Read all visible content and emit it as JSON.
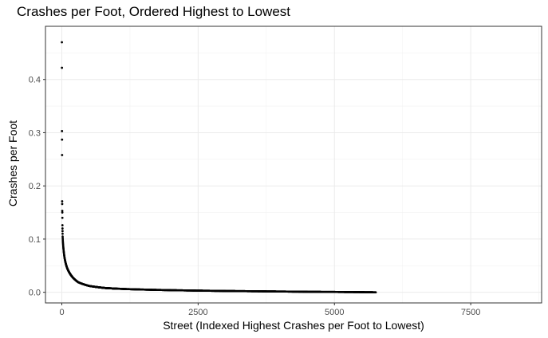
{
  "chart_data": {
    "type": "scatter",
    "title": "Crashes per Foot, Ordered Highest to Lowest",
    "xlabel": "Street (Indexed Highest Crashes per Foot to Lowest)",
    "ylabel": "Crashes per Foot",
    "xlim": [
      -300,
      8800
    ],
    "ylim": [
      -0.02,
      0.5
    ],
    "x_ticks": [
      0,
      2500,
      5000,
      7500
    ],
    "y_ticks": [
      0.0,
      0.1,
      0.2,
      0.3,
      0.4
    ],
    "grid": true,
    "n_points": 5760,
    "leading_points": [
      {
        "x": 1,
        "y": 0.47
      },
      {
        "x": 2,
        "y": 0.422
      },
      {
        "x": 3,
        "y": 0.303
      },
      {
        "x": 4,
        "y": 0.287
      },
      {
        "x": 5,
        "y": 0.258
      },
      {
        "x": 6,
        "y": 0.171
      },
      {
        "x": 7,
        "y": 0.166
      },
      {
        "x": 8,
        "y": 0.153
      },
      {
        "x": 9,
        "y": 0.15
      },
      {
        "x": 10,
        "y": 0.14
      },
      {
        "x": 11,
        "y": 0.126
      },
      {
        "x": 12,
        "y": 0.12
      },
      {
        "x": 13,
        "y": 0.115
      },
      {
        "x": 14,
        "y": 0.11
      }
    ],
    "tail_points": [
      {
        "x": 15,
        "y": 0.105
      },
      {
        "x": 20,
        "y": 0.095
      },
      {
        "x": 30,
        "y": 0.082
      },
      {
        "x": 50,
        "y": 0.065
      },
      {
        "x": 75,
        "y": 0.053
      },
      {
        "x": 100,
        "y": 0.045
      },
      {
        "x": 150,
        "y": 0.035
      },
      {
        "x": 200,
        "y": 0.028
      },
      {
        "x": 300,
        "y": 0.019
      },
      {
        "x": 500,
        "y": 0.012
      },
      {
        "x": 800,
        "y": 0.008
      },
      {
        "x": 1200,
        "y": 0.006
      },
      {
        "x": 2000,
        "y": 0.004
      },
      {
        "x": 3000,
        "y": 0.0025
      },
      {
        "x": 3700,
        "y": 0.0018
      },
      {
        "x": 4500,
        "y": 0.001
      },
      {
        "x": 5500,
        "y": 0.0003
      },
      {
        "x": 5760,
        "y": 0.0
      }
    ]
  }
}
